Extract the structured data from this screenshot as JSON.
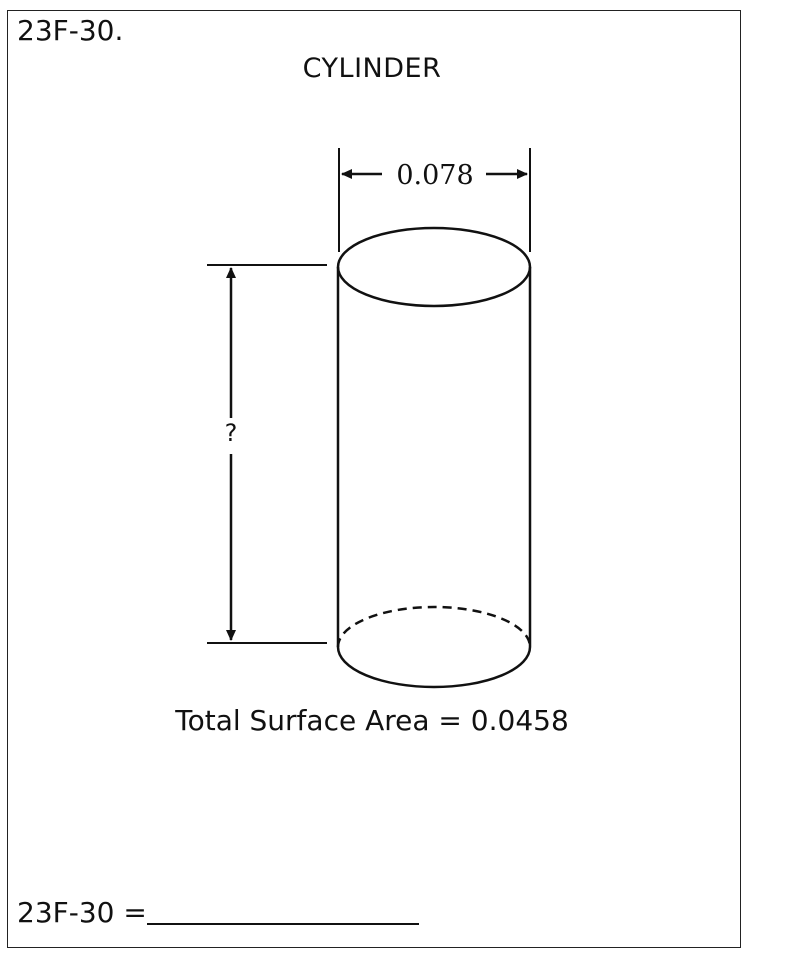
{
  "problem": {
    "number": "23F-30.",
    "title": "CYLINDER"
  },
  "figure": {
    "diameter_label": "0.078",
    "height_label": "?",
    "surface_area_text": "Total Surface Area = 0.0458"
  },
  "answer": {
    "prefix": "23F-30 ="
  }
}
